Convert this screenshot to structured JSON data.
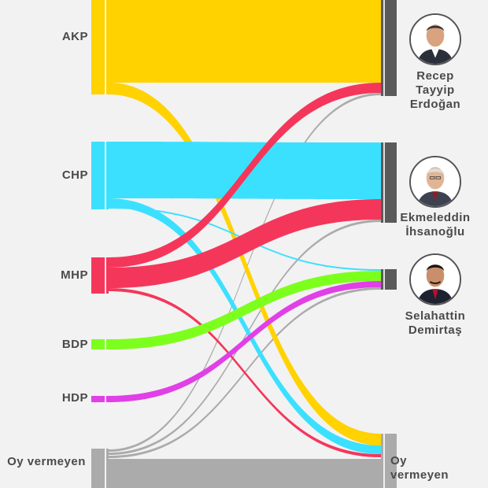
{
  "left_parties": [
    {
      "key": "akp",
      "label": "AKP",
      "color": "#FFD200"
    },
    {
      "key": "chp",
      "label": "CHP",
      "color": "#3BE0FF"
    },
    {
      "key": "mhp",
      "label": "MHP",
      "color": "#F5365B"
    },
    {
      "key": "bdp",
      "label": "BDP",
      "color": "#7DFF1E"
    },
    {
      "key": "hdp",
      "label": "HDP",
      "color": "#E040E6"
    },
    {
      "key": "oy",
      "label": "Oy vermeyen",
      "color": "#ABABAB"
    }
  ],
  "right_candidates": [
    {
      "key": "erdogan",
      "label": "Recep Tayyip Erdoğan",
      "lines": [
        "Recep",
        "Tayyip",
        "Erdoğan"
      ],
      "photo": "portrait-erdogan"
    },
    {
      "key": "ihsanoglu",
      "label": "Ekmeleddin İhsanoğlu",
      "lines": [
        "Ekmeleddin",
        "İhsanoğlu"
      ],
      "photo": "portrait-ihsanoglu"
    },
    {
      "key": "demirtas",
      "label": "Selahattin Demirtaş",
      "lines": [
        "Selahattin",
        "Demirtaş"
      ],
      "photo": "portrait-demirtas"
    },
    {
      "key": "oyv",
      "label": "Oy vermeyen",
      "lines": [
        "Oy",
        "vermeyen"
      ],
      "photo": null
    }
  ],
  "target_bar_color": "#5A5A5A",
  "nonvoter_bar_color": "#ABABAB"
}
